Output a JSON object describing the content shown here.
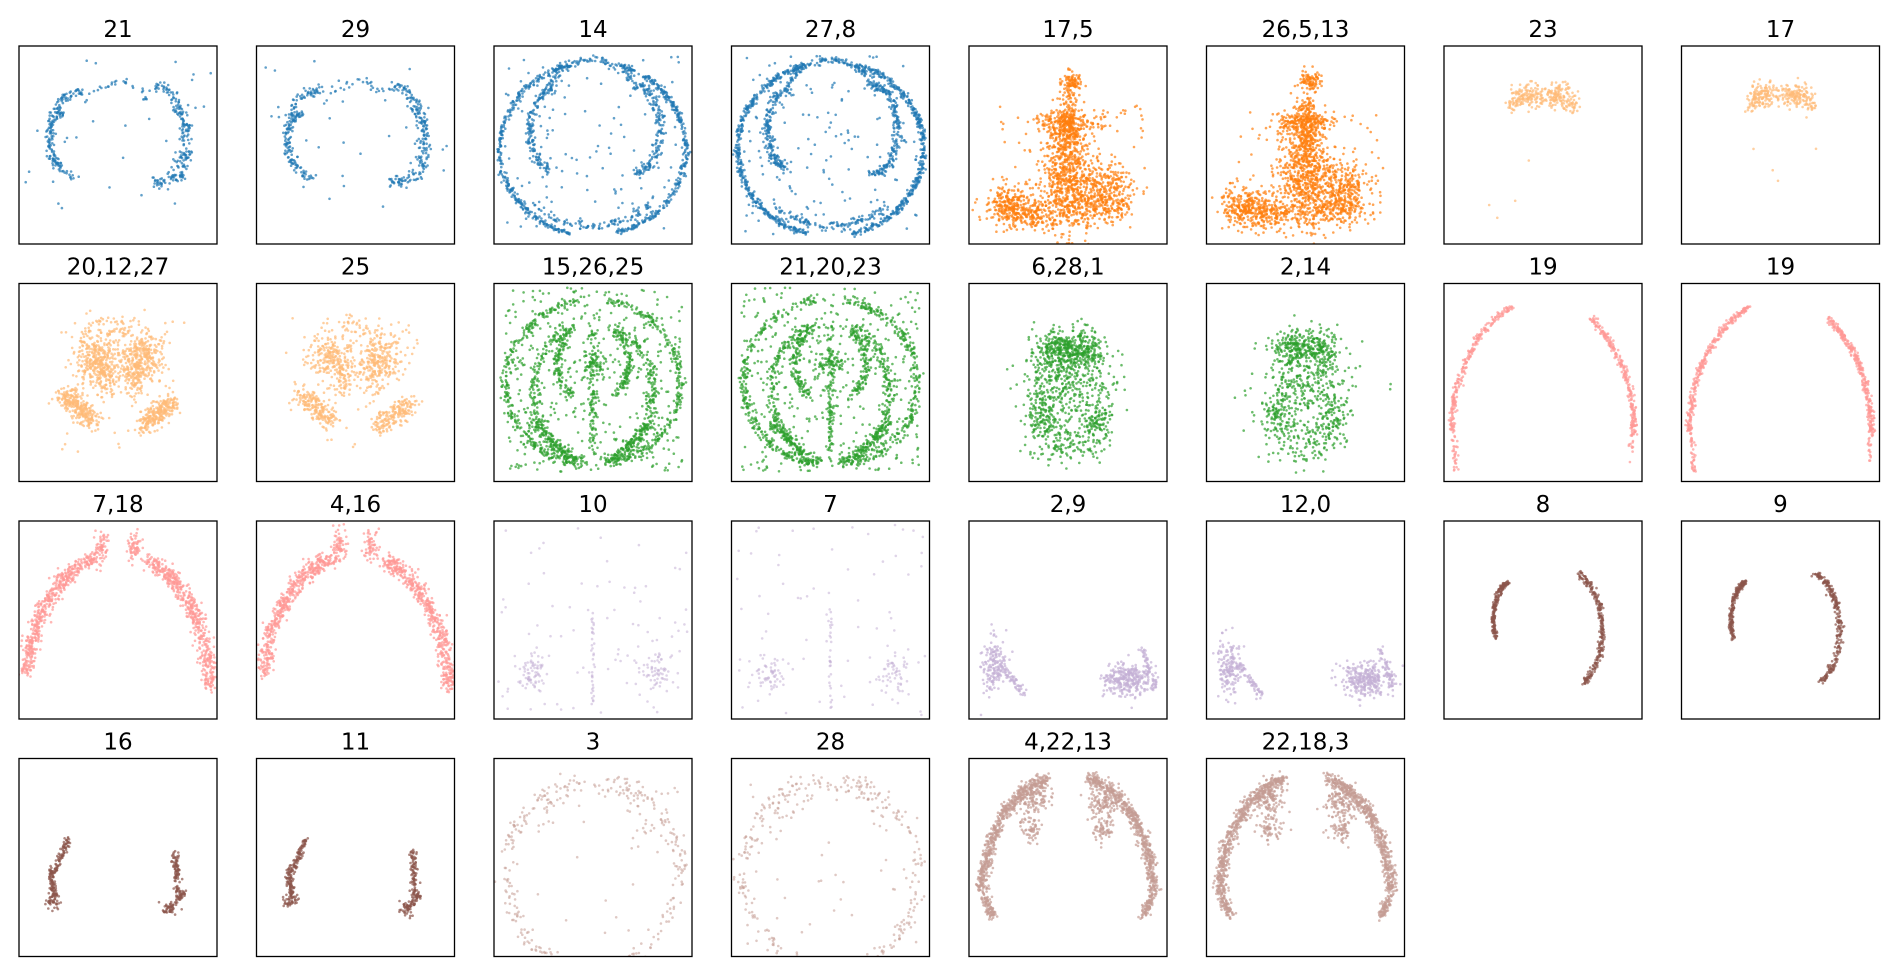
{
  "figure": {
    "colors": {
      "blue": "#1f77b4",
      "orange": "#ff7f0e",
      "light_orange": "#ffbb78",
      "green": "#2ca02c",
      "pink": "#ff9896",
      "lavender": "#c5b0d5",
      "brown": "#8c564b",
      "tan": "#c49c94"
    }
  },
  "chart_data": [
    {
      "type": "scatter",
      "title": "21",
      "color": "#1f77b4",
      "shape": "inner_arcs",
      "density": 0.5
    },
    {
      "type": "scatter",
      "title": "29",
      "color": "#1f77b4",
      "shape": "inner_arcs",
      "density": 0.5
    },
    {
      "type": "scatter",
      "title": "14",
      "color": "#1f77b4",
      "shape": "outline_arcs",
      "density": 0.8
    },
    {
      "type": "scatter",
      "title": "27,8",
      "color": "#1f77b4",
      "shape": "outline_arcs",
      "density": 1.0
    },
    {
      "type": "scatter",
      "title": "17,5",
      "color": "#ff7f0e",
      "shape": "tree",
      "density": 1.0
    },
    {
      "type": "scatter",
      "title": "26,5,13",
      "color": "#ff7f0e",
      "shape": "tree",
      "density": 1.0
    },
    {
      "type": "scatter",
      "title": "23",
      "color": "#ffbb78",
      "shape": "top_wings",
      "density": 0.8
    },
    {
      "type": "scatter",
      "title": "17",
      "color": "#ffbb78",
      "shape": "top_wings",
      "density": 0.8
    },
    {
      "type": "scatter",
      "title": "20,12,27",
      "color": "#ffbb78",
      "shape": "four_blobs",
      "density": 1.0
    },
    {
      "type": "scatter",
      "title": "25",
      "color": "#ffbb78",
      "shape": "four_blobs",
      "density": 0.7
    },
    {
      "type": "scatter",
      "title": "15,26,25",
      "color": "#2ca02c",
      "shape": "web",
      "density": 1.0
    },
    {
      "type": "scatter",
      "title": "21,20,23",
      "color": "#2ca02c",
      "shape": "web",
      "density": 1.0
    },
    {
      "type": "scatter",
      "title": "6,28,1",
      "color": "#2ca02c",
      "shape": "center_cluster",
      "density": 1.0
    },
    {
      "type": "scatter",
      "title": "2,14",
      "color": "#2ca02c",
      "shape": "center_cluster",
      "density": 0.8
    },
    {
      "type": "scatter",
      "title": "19",
      "color": "#ff9896",
      "shape": "outer_thin",
      "density": 0.8
    },
    {
      "type": "scatter",
      "title": "19",
      "color": "#ff9896",
      "shape": "outer_thin",
      "density": 1.0
    },
    {
      "type": "scatter",
      "title": "7,18",
      "color": "#ff9896",
      "shape": "top_arc",
      "density": 1.0
    },
    {
      "type": "scatter",
      "title": "4,16",
      "color": "#ff9896",
      "shape": "top_arc",
      "density": 1.0
    },
    {
      "type": "scatter",
      "title": "10",
      "color": "#c5b0d5",
      "shape": "sparse_bottom",
      "density": 0.6
    },
    {
      "type": "scatter",
      "title": "7",
      "color": "#c5b0d5",
      "shape": "sparse_bottom",
      "density": 0.5
    },
    {
      "type": "scatter",
      "title": "2,9",
      "color": "#c5b0d5",
      "shape": "bottom_clusters",
      "density": 1.0
    },
    {
      "type": "scatter",
      "title": "12,0",
      "color": "#c5b0d5",
      "shape": "bottom_clusters",
      "density": 1.0
    },
    {
      "type": "scatter",
      "title": "8",
      "color": "#8c564b",
      "shape": "mid_arcs",
      "density": 1.0
    },
    {
      "type": "scatter",
      "title": "9",
      "color": "#8c564b",
      "shape": "mid_arcs",
      "density": 1.0
    },
    {
      "type": "scatter",
      "title": "16",
      "color": "#8c564b",
      "shape": "lower_hooks",
      "density": 1.0
    },
    {
      "type": "scatter",
      "title": "11",
      "color": "#8c564b",
      "shape": "lower_hooks",
      "density": 1.0
    },
    {
      "type": "scatter",
      "title": "3",
      "color": "#c49c94",
      "shape": "outer_dotted",
      "density": 0.6
    },
    {
      "type": "scatter",
      "title": "28",
      "color": "#c49c94",
      "shape": "outer_dotted",
      "density": 0.6
    },
    {
      "type": "scatter",
      "title": "4,22,13",
      "color": "#c49c94",
      "shape": "outer_thick",
      "density": 1.0
    },
    {
      "type": "scatter",
      "title": "22,18,3",
      "color": "#c49c94",
      "shape": "outer_thick",
      "density": 1.0
    }
  ]
}
